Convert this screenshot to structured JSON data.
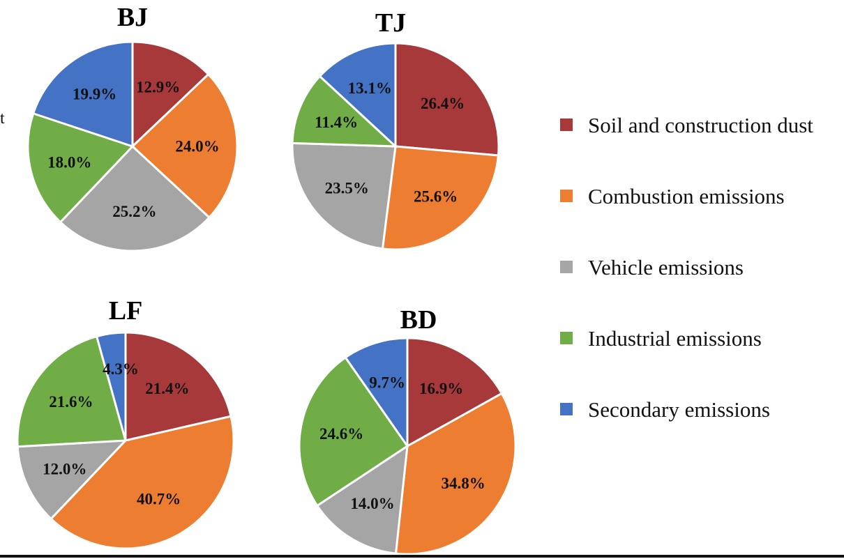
{
  "chart_data": {
    "type": "pie",
    "categories": [
      "Soil and construction dust",
      "Combustion emissions",
      "Vehicle emissions",
      "Industrial emissions",
      "Secondary emissions"
    ],
    "colors": {
      "Soil and construction dust": "#A8393B",
      "Combustion emissions": "#ED7D31",
      "Vehicle emissions": "#A5A5A5",
      "Industrial emissions": "#70AD47",
      "Secondary emissions": "#4472C4"
    },
    "legend_position": "right",
    "charts": [
      {
        "title": "BJ",
        "values": [
          12.9,
          24.0,
          25.2,
          18.0,
          19.9
        ],
        "labels": [
          "12.9%",
          "24.0%",
          "25.2%",
          "18.0%",
          "19.9%"
        ]
      },
      {
        "title": "TJ",
        "values": [
          26.4,
          25.6,
          23.5,
          11.4,
          13.1
        ],
        "labels": [
          "26.4%",
          "25.6%",
          "23.5%",
          "11.4%",
          "13.1%"
        ]
      },
      {
        "title": "LF",
        "values": [
          21.4,
          40.7,
          12.0,
          21.6,
          4.3
        ],
        "labels": [
          "21.4%",
          "40.7%",
          "12.0%",
          "21.6%",
          "4.3%"
        ]
      },
      {
        "title": "BD",
        "values": [
          16.9,
          34.8,
          14.0,
          24.6,
          9.7
        ],
        "labels": [
          "16.9%",
          "34.8%",
          "14.0%",
          "24.6%",
          "9.7%"
        ]
      }
    ]
  },
  "edge_fragment": "t"
}
